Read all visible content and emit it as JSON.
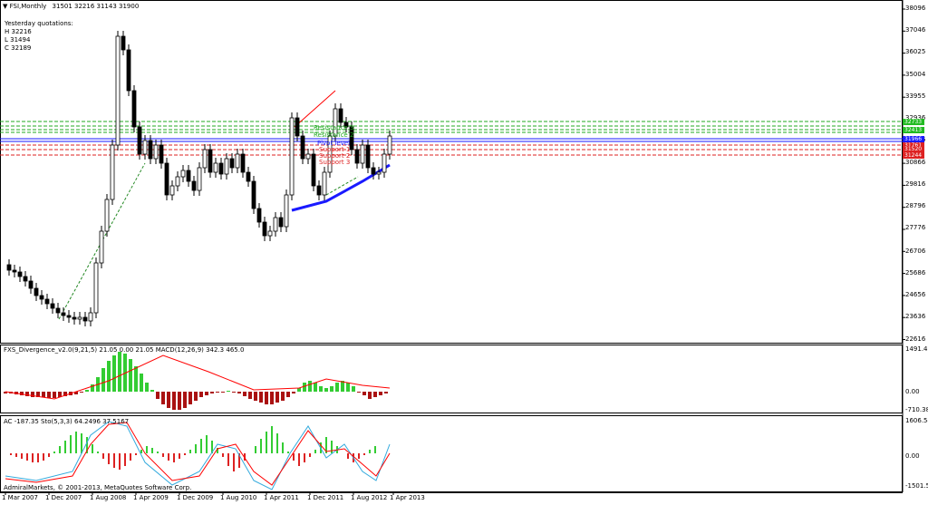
{
  "window": {
    "symbol": "FSI,Monthly",
    "ohlc": "31501 32216 31143 31900"
  },
  "yesterday": {
    "title": "Yesterday quotations:",
    "h": "H 32216",
    "l": "L 31494",
    "c": "C 32189"
  },
  "price_axis": [
    "38096",
    "37046",
    "36025",
    "35004",
    "33955",
    "32936",
    "31916",
    "30866",
    "29816",
    "28796",
    "27776",
    "26706",
    "25686",
    "24656",
    "23636",
    "22616"
  ],
  "level_tags": [
    {
      "label": "32733",
      "color": "#22bb22"
    },
    {
      "label": "32413",
      "color": "#22bb22"
    },
    {
      "label": "31966",
      "color": "#1a1aff"
    },
    {
      "label": "31761",
      "color": "#dd2222"
    },
    {
      "label": "31520",
      "color": "#dd2222"
    },
    {
      "label": "31244",
      "color": "#dd2222"
    }
  ],
  "level_labels": [
    "Resistance 3",
    "Resistance 2",
    "Pivot level",
    "Support 1",
    "Support 2",
    "Support 3"
  ],
  "ind1": {
    "title": "FXS_Divergence_v2.0(9,21,5) 21.05 0.00 21.05  MACD(12,26,9) 342.3 465.0",
    "axis": [
      "1491.43",
      "0.00",
      "-710.38"
    ]
  },
  "ind2": {
    "title": "AC -187.35  Sto(5,3,3) 64.2496 37.5167",
    "axis": [
      "1606.54",
      "0.00",
      "-1501.51"
    ]
  },
  "copyright": "AdmiralMarkets, © 2001-2013, MetaQuotes Software Corp.",
  "time_axis": [
    "1 Mar 2007",
    "1 Dec 2007",
    "1 Aug 2008",
    "1 Apr 2009",
    "1 Dec 2009",
    "1 Aug 2010",
    "1 Apr 2011",
    "1 Dec 2011",
    "1 Aug 2012",
    "1 Apr 2013"
  ],
  "colors": {
    "up": "#ffffff",
    "down": "#000000",
    "macd_up": "#33cc33",
    "macd_down": "#aa1111",
    "signal": "#ff0000",
    "sto_main": "#33aadd",
    "support": "#dd2222",
    "resistance": "#22aa22",
    "pivot": "#1a1aff",
    "trend": "#1a1aff"
  }
}
